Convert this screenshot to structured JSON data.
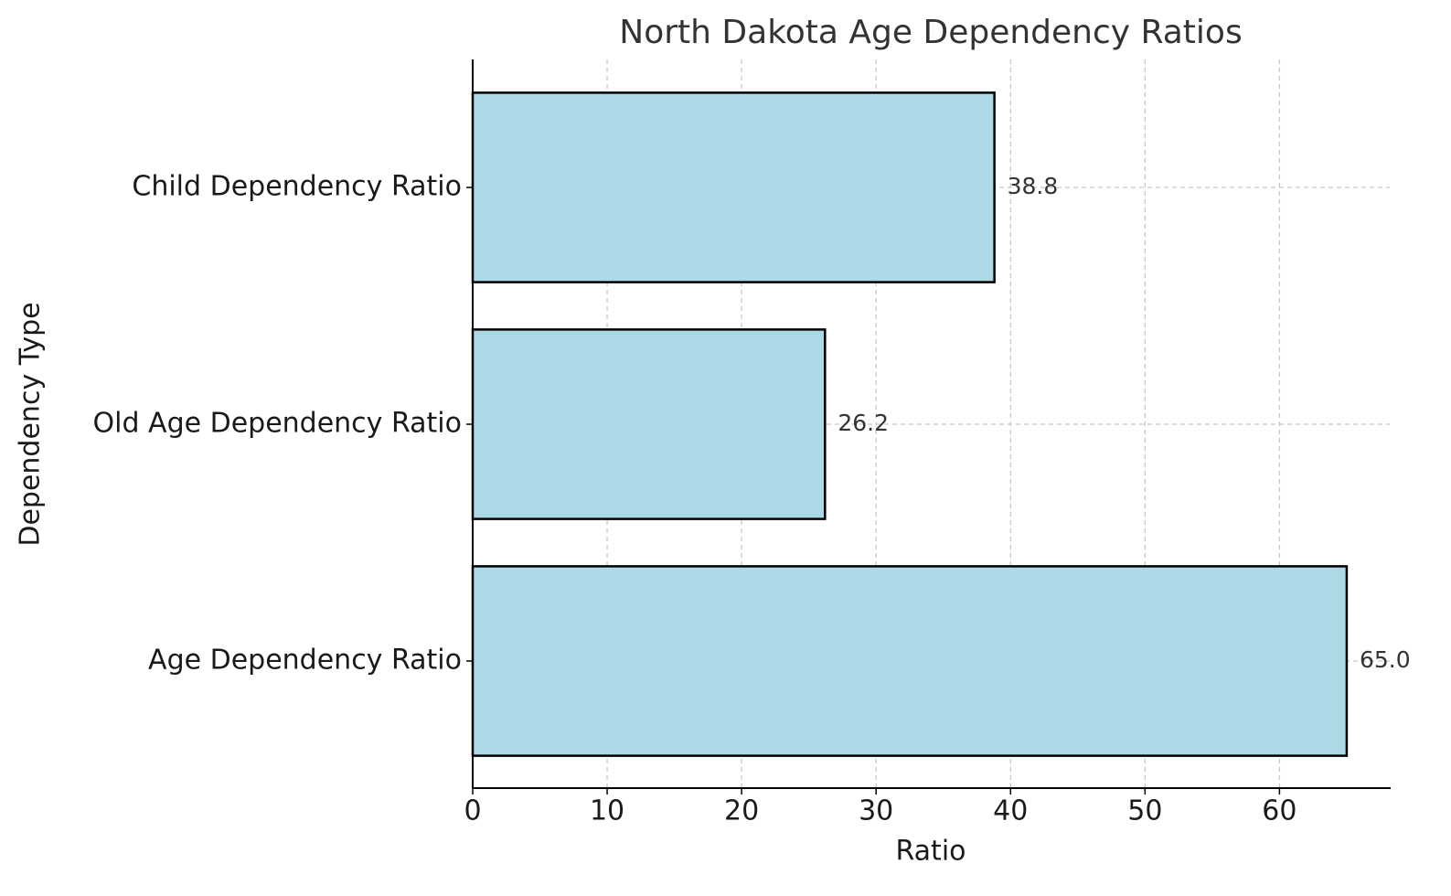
{
  "chart_data": {
    "type": "barh",
    "title": "North Dakota Age Dependency Ratios",
    "xlabel": "Ratio",
    "ylabel": "Dependency Type",
    "categories": [
      "Age Dependency Ratio",
      "Old Age Dependency Ratio",
      "Child Dependency Ratio"
    ],
    "values": [
      65.0,
      26.2,
      38.8
    ],
    "value_labels": [
      "65.0",
      "26.2",
      "38.8"
    ],
    "color": "#add8e6",
    "edgecolor": "#000000",
    "xlim": [
      0,
      68.2
    ],
    "xticks": [
      0,
      10,
      20,
      30,
      40,
      50,
      60
    ],
    "grid": true
  }
}
